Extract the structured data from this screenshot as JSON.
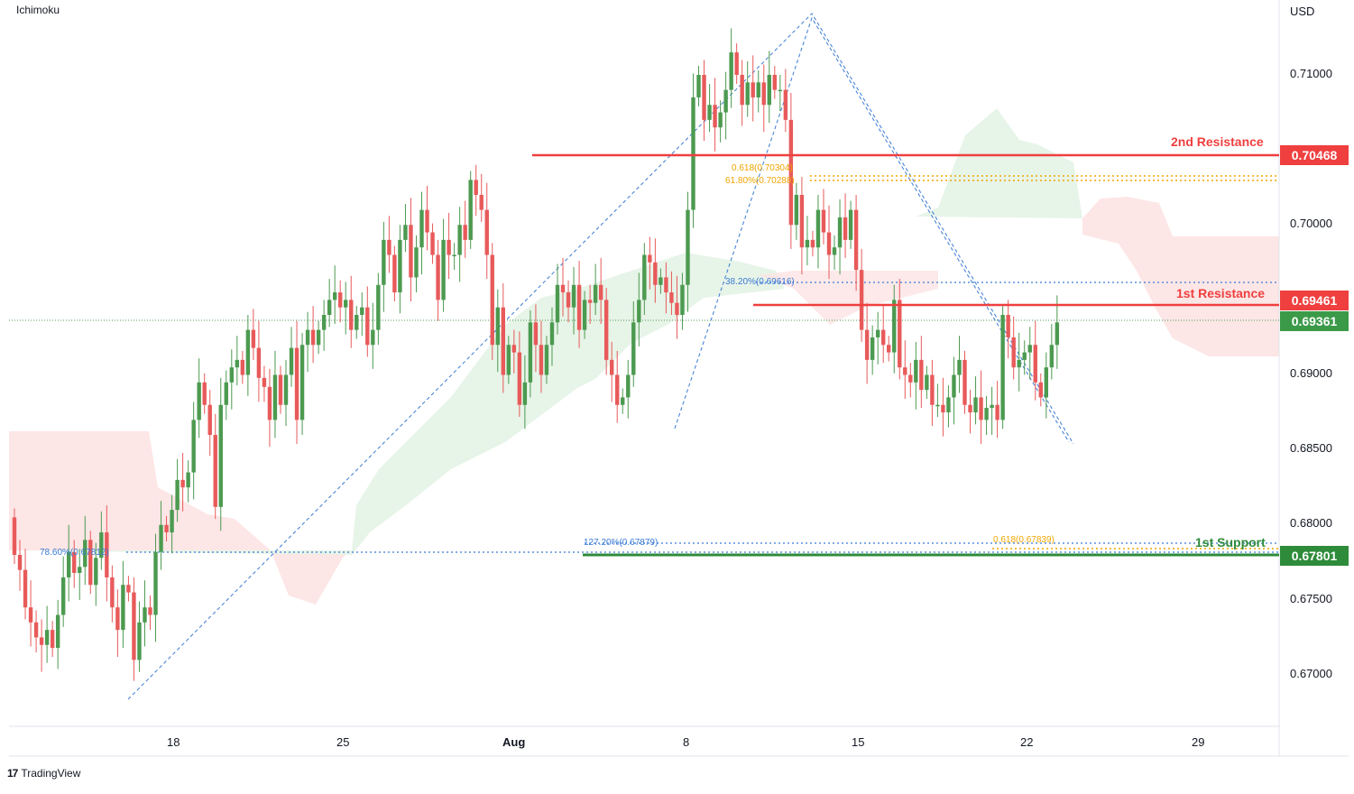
{
  "indicator": "Ichimoku",
  "currency": "USD",
  "branding": "TradingView",
  "colors": {
    "bull": "#4c9a50",
    "bear": "#e85a5a",
    "resistance": "#ef3f3f",
    "support": "#2e8b3a",
    "fib_blue": "#3a7bd5",
    "fib_orange": "#f0a500",
    "cloud_green": "#e6f3e7",
    "cloud_red": "#fde3e3"
  },
  "chart_data": {
    "type": "candlestick",
    "x_ticks": [
      "18",
      "25",
      "Aug",
      "8",
      "15",
      "22",
      "29"
    ],
    "y_ticks": [
      "0.71000",
      "0.70000",
      "0.69000",
      "0.68500",
      "0.68000",
      "0.67500",
      "0.67000"
    ],
    "levels": [
      {
        "name": "2nd Resistance",
        "value": "0.70468",
        "color": "#ef3f3f"
      },
      {
        "name": "1st Resistance",
        "value": "0.69461",
        "color": "#ef3f3f"
      },
      {
        "name": "1st Support",
        "value": "0.67801",
        "color": "#2e8b3a"
      }
    ],
    "current_price": "0.69361",
    "fib_labels": [
      {
        "text": "0.618(0.70304)",
        "color": "#f0a500"
      },
      {
        "text": "61.80%(0.70288)",
        "color": "#f0a500"
      },
      {
        "text": "38.20%(0.69616)",
        "color": "#3a7bd5"
      },
      {
        "text": "78.60%(0.67812)",
        "color": "#3a7bd5"
      },
      {
        "text": "127.20%(0.67879)",
        "color": "#3a7bd5"
      },
      {
        "text": "0.618(0.67839)",
        "color": "#f0a500"
      }
    ],
    "candles_close": [
      0.678,
      0.677,
      0.6745,
      0.6735,
      0.6725,
      0.672,
      0.673,
      0.6718,
      0.674,
      0.6765,
      0.6782,
      0.6768,
      0.6772,
      0.679,
      0.676,
      0.6778,
      0.6795,
      0.6765,
      0.6745,
      0.673,
      0.676,
      0.6755,
      0.671,
      0.6735,
      0.6745,
      0.674,
      0.6782,
      0.68,
      0.6795,
      0.681,
      0.683,
      0.6825,
      0.6835,
      0.687,
      0.6895,
      0.688,
      0.686,
      0.6812,
      0.688,
      0.6895,
      0.6905,
      0.691,
      0.69,
      0.693,
      0.6918,
      0.6898,
      0.6892,
      0.687,
      0.69,
      0.688,
      0.69,
      0.6918,
      0.687,
      0.692,
      0.693,
      0.692,
      0.693,
      0.694,
      0.695,
      0.6955,
      0.6945,
      0.695,
      0.693,
      0.694,
      0.6945,
      0.692,
      0.693,
      0.696,
      0.699,
      0.698,
      0.6955,
      0.699,
      0.7,
      0.6965,
      0.6985,
      0.701,
      0.6995,
      0.698,
      0.695,
      0.699,
      0.698,
      0.698,
      0.7,
      0.699,
      0.703,
      0.702,
      0.701,
      0.698,
      0.692,
      0.6945,
      0.69,
      0.692,
      0.6915,
      0.688,
      0.6895,
      0.6935,
      0.692,
      0.69,
      0.692,
      0.6935,
      0.696,
      0.6955,
      0.6945,
      0.696,
      0.693,
      0.695,
      0.6948,
      0.696,
      0.695,
      0.691,
      0.69,
      0.688,
      0.6885,
      0.69,
      0.6935,
      0.695,
      0.698,
      0.6975,
      0.696,
      0.6965,
      0.6955,
      0.6948,
      0.694,
      0.696,
      0.701,
      0.7085,
      0.71,
      0.707,
      0.708,
      0.7065,
      0.7075,
      0.709,
      0.7115,
      0.71,
      0.708,
      0.7095,
      0.7085,
      0.7095,
      0.708,
      0.71,
      0.709,
      0.709,
      0.707,
      0.7,
      0.702,
      0.6985,
      0.699,
      0.6985,
      0.701,
      0.6995,
      0.698,
      0.6985,
      0.7005,
      0.699,
      0.701,
      0.697,
      0.693,
      0.691,
      0.6925,
      0.693,
      0.692,
      0.6915,
      0.695,
      0.6905,
      0.69,
      0.6895,
      0.691,
      0.689,
      0.69,
      0.688,
      0.688,
      0.6875,
      0.6885,
      0.69,
      0.691,
      0.688,
      0.6875,
      0.6885,
      0.687,
      0.6878,
      0.688,
      0.687,
      0.694,
      0.6925,
      0.6905,
      0.691,
      0.6915,
      0.692,
      0.6895,
      0.6885,
      0.6905,
      0.692,
      0.6935
    ]
  }
}
